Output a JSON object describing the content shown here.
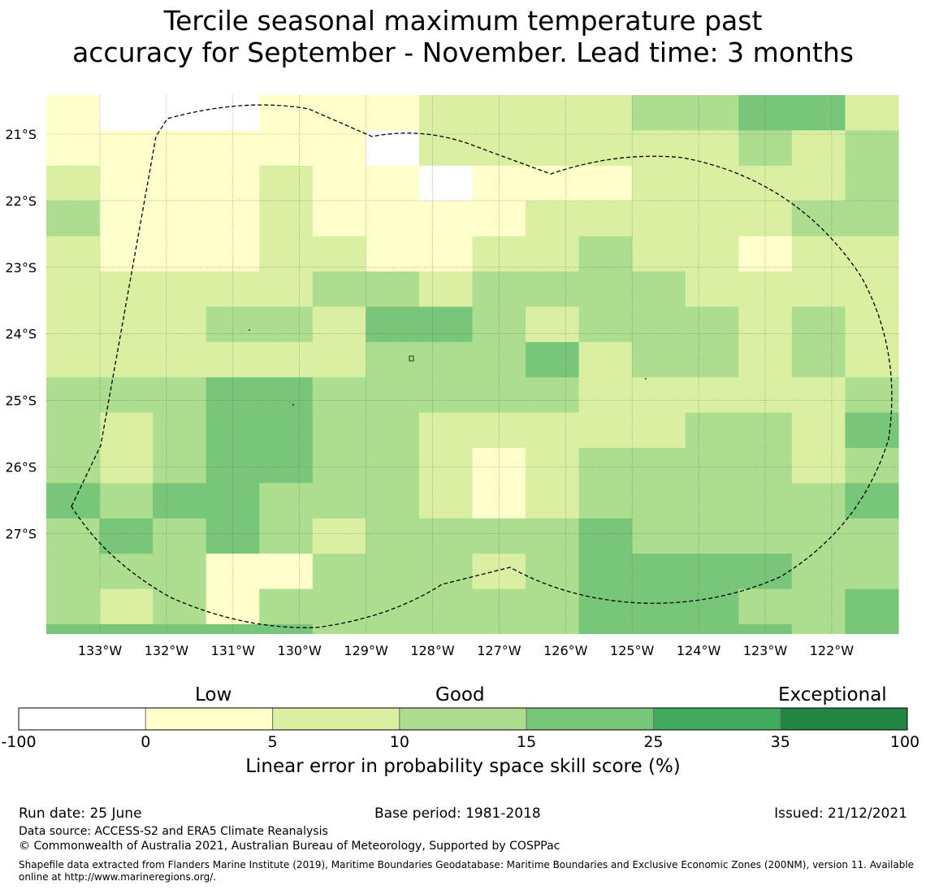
{
  "title_line1": "Tercile seasonal maximum temperature past",
  "title_line2": "accuracy for September - November. Lead time: 3 months",
  "map": {
    "lon_labels": [
      "133°W",
      "132°W",
      "131°W",
      "130°W",
      "129°W",
      "128°W",
      "127°W",
      "126°W",
      "125°W",
      "124°W",
      "123°W",
      "122°W"
    ],
    "lat_labels": [
      "21°S",
      "22°S",
      "23°S",
      "24°S",
      "25°S",
      "26°S",
      "27°S"
    ],
    "grid_cols": 16,
    "grid_rows": 15,
    "category_colors": [
      "#ffffff",
      "#ffffcc",
      "#d9f0a3",
      "#addd8e",
      "#78c679",
      "#41ab5d",
      "#238443"
    ],
    "skill_categories": [
      [
        1,
        0,
        0,
        0,
        1,
        1,
        1,
        2,
        2,
        2,
        2,
        3,
        3,
        4,
        4,
        2
      ],
      [
        1,
        1,
        1,
        1,
        1,
        1,
        0,
        2,
        2,
        2,
        2,
        2,
        2,
        3,
        2,
        3
      ],
      [
        2,
        1,
        1,
        1,
        2,
        1,
        1,
        0,
        1,
        1,
        1,
        2,
        2,
        2,
        2,
        3
      ],
      [
        3,
        1,
        1,
        1,
        2,
        1,
        1,
        1,
        1,
        2,
        2,
        2,
        2,
        2,
        3,
        3
      ],
      [
        2,
        1,
        1,
        1,
        2,
        2,
        1,
        1,
        2,
        2,
        3,
        2,
        2,
        1,
        2,
        2
      ],
      [
        2,
        2,
        2,
        2,
        2,
        3,
        3,
        2,
        3,
        3,
        3,
        3,
        2,
        2,
        2,
        2
      ],
      [
        2,
        2,
        2,
        3,
        3,
        2,
        4,
        4,
        3,
        2,
        3,
        3,
        3,
        2,
        3,
        2
      ],
      [
        2,
        2,
        2,
        2,
        2,
        2,
        3,
        3,
        3,
        4,
        2,
        3,
        3,
        2,
        3,
        2
      ],
      [
        3,
        3,
        3,
        4,
        4,
        3,
        3,
        3,
        3,
        3,
        2,
        2,
        2,
        2,
        2,
        3
      ],
      [
        3,
        2,
        3,
        4,
        4,
        3,
        3,
        2,
        2,
        2,
        2,
        2,
        3,
        3,
        2,
        4
      ],
      [
        3,
        2,
        3,
        4,
        4,
        3,
        3,
        2,
        1,
        2,
        3,
        3,
        3,
        3,
        2,
        3
      ],
      [
        4,
        3,
        4,
        4,
        3,
        3,
        3,
        2,
        1,
        2,
        3,
        3,
        3,
        3,
        3,
        4
      ],
      [
        3,
        4,
        3,
        4,
        3,
        2,
        3,
        3,
        3,
        3,
        4,
        3,
        3,
        3,
        3,
        3
      ],
      [
        3,
        3,
        3,
        1,
        1,
        3,
        3,
        3,
        2,
        3,
        4,
        4,
        4,
        4,
        3,
        3
      ],
      [
        3,
        2,
        3,
        1,
        3,
        3,
        3,
        3,
        3,
        3,
        4,
        4,
        4,
        3,
        3,
        4
      ]
    ],
    "bottom_strip": [
      4,
      4,
      4,
      4,
      4,
      3,
      3,
      3,
      3,
      3,
      4,
      4,
      4,
      4,
      3,
      4
    ]
  },
  "colorbar": {
    "category_labels": [
      "Low",
      "Good",
      "Exceptional"
    ],
    "bins": [
      {
        "color": "#ffffff",
        "from": "-100",
        "to": "0"
      },
      {
        "color": "#ffffcc",
        "from": "0",
        "to": "5"
      },
      {
        "color": "#d9f0a3",
        "from": "5",
        "to": "10"
      },
      {
        "color": "#addd8e",
        "from": "10",
        "to": "15"
      },
      {
        "color": "#78c679",
        "from": "15",
        "to": "25"
      },
      {
        "color": "#41ab5d",
        "from": "25",
        "to": "35"
      },
      {
        "color": "#238443",
        "from": "35",
        "to": "100"
      }
    ],
    "tick_labels": [
      "-100",
      "0",
      "5",
      "10",
      "15",
      "25",
      "35",
      "100"
    ],
    "title": "Linear error in probability space skill score (%)"
  },
  "footer": {
    "run_date": "Run date: 25 June",
    "base_period": "Base period: 1981-2018",
    "issued": "Issued: 21/12/2021",
    "data_source": "Data source: ACCESS-S2 and ERA5 Climate Reanalysis",
    "copyright": "© Commonwealth of Australia 2021, Australian Bureau of Meteorology, Supported by COSPPac",
    "shapefile": "Shapefile data extracted from Flanders Marine Institute (2019), Maritime Boundaries Geodatabase: Maritime Boundaries and Exclusive Economic Zones (200NM), version 11. Available online at http://www.marineregions.org/."
  }
}
